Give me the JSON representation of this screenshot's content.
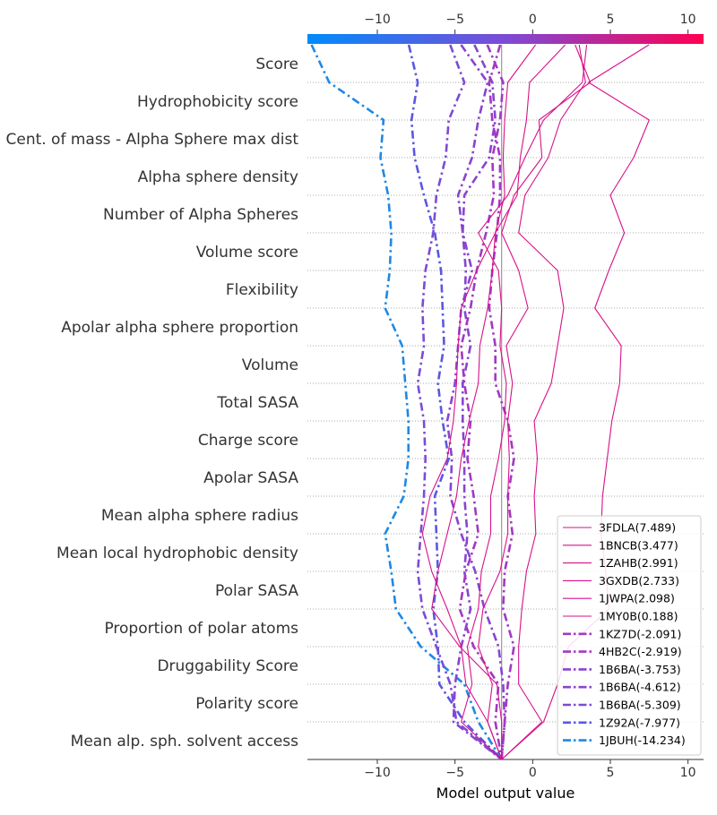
{
  "chart_data": {
    "type": "line",
    "subtype": "shap-decision-plot",
    "xlabel": "Model output value",
    "xlim": [
      -14.5,
      11
    ],
    "xticks": [
      -10,
      -5,
      0,
      5,
      10
    ],
    "base_value": -2,
    "colorbar_range": [
      -14.5,
      11
    ],
    "colorbar_colors": [
      "#008bfb",
      "#ff0052"
    ],
    "features": [
      "Score",
      "Hydrophobicity score",
      "Cent. of mass - Alpha Sphere max dist",
      "Alpha sphere density",
      "Number of Alpha Spheres",
      "Volume score",
      "Flexibility",
      "Apolar alpha sphere proportion",
      "Volume",
      "Total SASA",
      "Charge score",
      "Apolar SASA",
      "Mean alpha sphere radius",
      "Mean local hydrophobic density",
      "Polar SASA",
      "Proportion of polar atoms",
      "Druggability Score",
      "Polarity score",
      "Mean alp. sph. solvent access"
    ],
    "series": [
      {
        "name": "3FDLA(7.489)",
        "final": 7.489,
        "style": "solid",
        "color": "#d7118a",
        "values": [
          7.489,
          3.6,
          7.5,
          6.5,
          5.0,
          5.9,
          4.9,
          4.0,
          5.7,
          5.6,
          5.1,
          4.8,
          4.5,
          4.4,
          4.7,
          4.9,
          2.3,
          1.6,
          0.7,
          -2.0
        ]
      },
      {
        "name": "1BNCB(3.477)",
        "final": 3.477,
        "style": "solid",
        "color": "#d7118a",
        "values": [
          3.477,
          3.2,
          0.7,
          -0.5,
          -1.6,
          -3.5,
          -2.2,
          -2.0,
          -2.1,
          -1.7,
          -1.8,
          -2.2,
          -2.7,
          -2.7,
          -3.3,
          -3.5,
          -4.2,
          -3.9,
          -4.6,
          -2.0
        ]
      },
      {
        "name": "1ZAHB(2.991)",
        "final": 2.991,
        "style": "solid",
        "color": "#d7118a",
        "values": [
          2.991,
          3.4,
          1.8,
          1.0,
          -0.5,
          -0.9,
          1.6,
          2.0,
          1.6,
          1.2,
          0.1,
          0.3,
          0.1,
          0.2,
          -0.4,
          -0.7,
          -0.9,
          -0.9,
          0.6,
          -2.0
        ]
      },
      {
        "name": "3GXDB(2.733)",
        "final": 2.733,
        "style": "solid",
        "color": "#d7118a",
        "values": [
          2.733,
          3.7,
          0.4,
          0.6,
          -1.2,
          -2.0,
          -0.9,
          -0.3,
          -1.7,
          -1.3,
          -1.6,
          -1.5,
          -1.6,
          -1.6,
          -2.1,
          -3.2,
          -3.5,
          -2.6,
          -2.9,
          -2.0
        ]
      },
      {
        "name": "1JWPA(2.098)",
        "final": 2.098,
        "style": "solid",
        "color": "#d7118a",
        "values": [
          2.098,
          -0.2,
          -0.4,
          -0.8,
          -1.0,
          -2.4,
          -2.6,
          -2.9,
          -3.4,
          -3.5,
          -4.1,
          -4.6,
          -4.9,
          -5.5,
          -6.1,
          -6.5,
          -4.7,
          -2.3,
          -2.0,
          -2.0
        ]
      },
      {
        "name": "1MY0B(0.188)",
        "final": 0.188,
        "style": "solid",
        "color": "#d7118a",
        "values": [
          0.188,
          -1.6,
          -1.8,
          -1.9,
          -1.8,
          -2.4,
          -3.6,
          -4.6,
          -4.8,
          -4.9,
          -5.1,
          -5.5,
          -6.6,
          -7.1,
          -6.5,
          -5.5,
          -4.6,
          -4.3,
          -2.9,
          -2.0
        ]
      },
      {
        "name": "1KZ7D(-2.091)",
        "final": -2.091,
        "style": "dashdot",
        "color": "#a238c5",
        "values": [
          -2.091,
          -2.8,
          -2.6,
          -2.1,
          -2.1,
          -2.3,
          -2.6,
          -2.8,
          -2.4,
          -2.4,
          -1.6,
          -1.2,
          -1.6,
          -1.3,
          -1.8,
          -1.9,
          -1.2,
          -1.6,
          -1.8,
          -2.0
        ]
      },
      {
        "name": "4HB2C(-2.919)",
        "final": -2.919,
        "style": "dashdot",
        "color": "#a238c5",
        "values": [
          -2.919,
          -1.9,
          -2.1,
          -2.6,
          -2.5,
          -3.0,
          -3.6,
          -4.0,
          -4.6,
          -4.4,
          -4.0,
          -4.2,
          -3.8,
          -3.5,
          -4.3,
          -4.7,
          -3.8,
          -2.2,
          -2.4,
          -2.0
        ]
      },
      {
        "name": "1B6BA(-3.753)",
        "final": -3.753,
        "style": "dashdot",
        "color": "#8844d0",
        "values": [
          -3.753,
          -2.6,
          -2.4,
          -2.8,
          -4.4,
          -4.5,
          -3.9,
          -4.6,
          -4.8,
          -5.0,
          -5.5,
          -5.2,
          -5.3,
          -4.6,
          -3.7,
          -3.1,
          -2.2,
          -1.9,
          -1.8,
          -2.0
        ]
      },
      {
        "name": "1B6BA(-4.612)",
        "final": -4.612,
        "style": "dashdot",
        "color": "#8844d0",
        "values": [
          -4.612,
          -2.9,
          -3.5,
          -3.9,
          -4.8,
          -4.5,
          -4.3,
          -4.4,
          -4.0,
          -4.5,
          -4.5,
          -4.4,
          -4.4,
          -4.2,
          -4.4,
          -4.0,
          -4.6,
          -5.0,
          -5.1,
          -2.0
        ]
      },
      {
        "name": "1B6BA(-5.309)",
        "final": -5.309,
        "style": "dashdot",
        "color": "#7c4bd6",
        "values": [
          -5.309,
          -4.4,
          -5.4,
          -5.6,
          -6.2,
          -6.4,
          -6.9,
          -7.1,
          -7.0,
          -7.4,
          -7.0,
          -6.9,
          -7.0,
          -7.2,
          -7.4,
          -7.1,
          -6.2,
          -5.3,
          -4.9,
          -2.0
        ]
      },
      {
        "name": "1Z92A(-7.977)",
        "final": -7.977,
        "style": "dashdot",
        "color": "#5a57e3",
        "values": [
          -7.977,
          -7.4,
          -7.8,
          -7.6,
          -7.0,
          -6.3,
          -5.9,
          -5.8,
          -5.7,
          -6.1,
          -5.8,
          -5.4,
          -6.3,
          -6.2,
          -6.1,
          -6.4,
          -6.1,
          -6.0,
          -4.4,
          -2.0
        ]
      },
      {
        "name": "1JBUH(-14.234)",
        "final": -14.234,
        "style": "dashdot",
        "color": "#1e88e5",
        "values": [
          -14.234,
          -13.1,
          -9.6,
          -9.8,
          -9.3,
          -9.1,
          -9.2,
          -9.5,
          -8.4,
          -8.2,
          -8.0,
          -8.0,
          -8.3,
          -9.5,
          -9.1,
          -8.8,
          -7.2,
          -4.4,
          -3.5,
          -2.0
        ]
      }
    ]
  }
}
